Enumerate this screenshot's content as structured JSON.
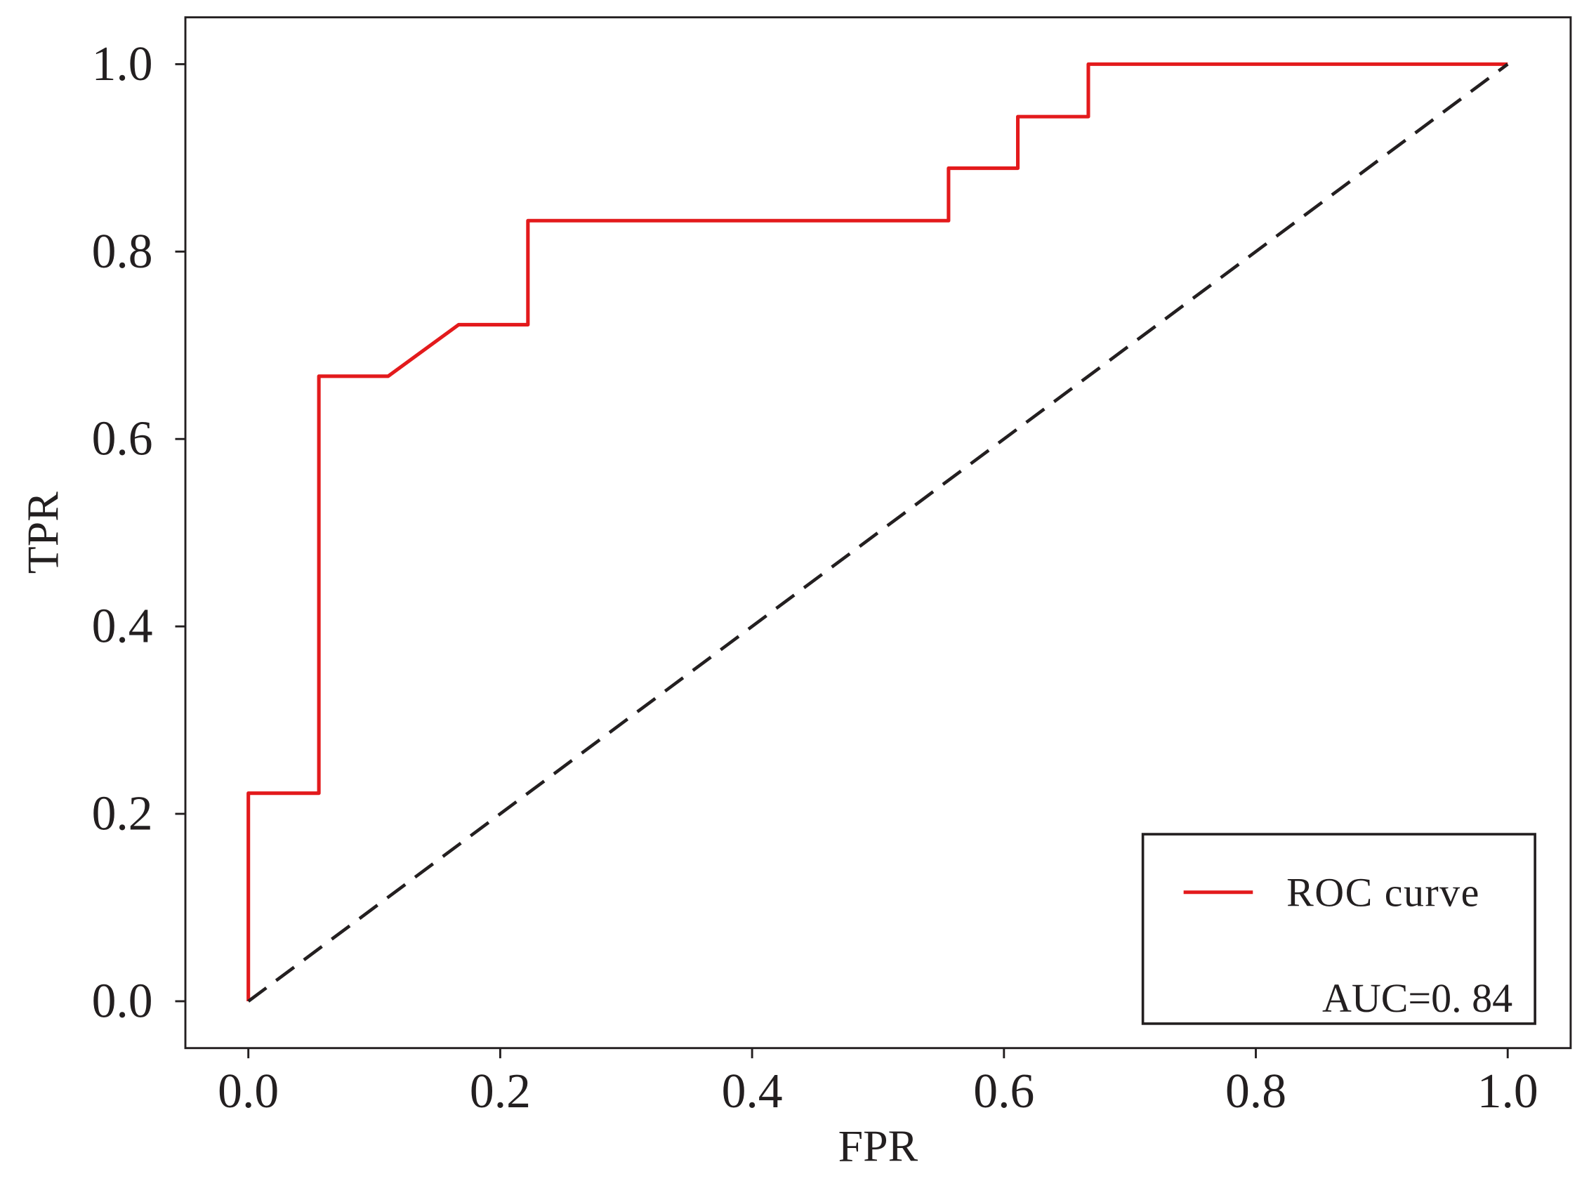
{
  "chart_data": {
    "type": "line",
    "title": "",
    "xlabel": "FPR",
    "ylabel": "TPR",
    "xlim": [
      -0.05,
      1.05
    ],
    "ylim": [
      -0.05,
      1.05
    ],
    "xticks": [
      0.0,
      0.2,
      0.4,
      0.6,
      0.8,
      1.0
    ],
    "xtick_labels": [
      "0.0",
      "0.2",
      "0.4",
      "0.6",
      "0.8",
      "1.0"
    ],
    "yticks": [
      0.0,
      0.2,
      0.4,
      0.6,
      0.8,
      1.0
    ],
    "ytick_labels": [
      "0.0",
      "0.2",
      "0.4",
      "0.6",
      "0.8",
      "1.0"
    ],
    "grid": false,
    "legend_position": "bottom-right",
    "series": [
      {
        "name": "ROC curve",
        "color": "#e31a1c",
        "style": "solid",
        "points": [
          [
            0.0,
            0.0
          ],
          [
            0.0,
            0.222
          ],
          [
            0.056,
            0.222
          ],
          [
            0.056,
            0.667
          ],
          [
            0.111,
            0.667
          ],
          [
            0.167,
            0.722
          ],
          [
            0.222,
            0.722
          ],
          [
            0.222,
            0.833
          ],
          [
            0.556,
            0.833
          ],
          [
            0.556,
            0.889
          ],
          [
            0.611,
            0.889
          ],
          [
            0.611,
            0.944
          ],
          [
            0.667,
            0.944
          ],
          [
            0.667,
            1.0
          ],
          [
            1.0,
            1.0
          ]
        ]
      },
      {
        "color": "#231f20",
        "style": "dashed",
        "points": [
          [
            0.0,
            0.0
          ],
          [
            1.0,
            1.0
          ]
        ]
      }
    ],
    "legend": {
      "entries": [
        "ROC curve"
      ],
      "annotation": "AUC=0. 84"
    }
  }
}
